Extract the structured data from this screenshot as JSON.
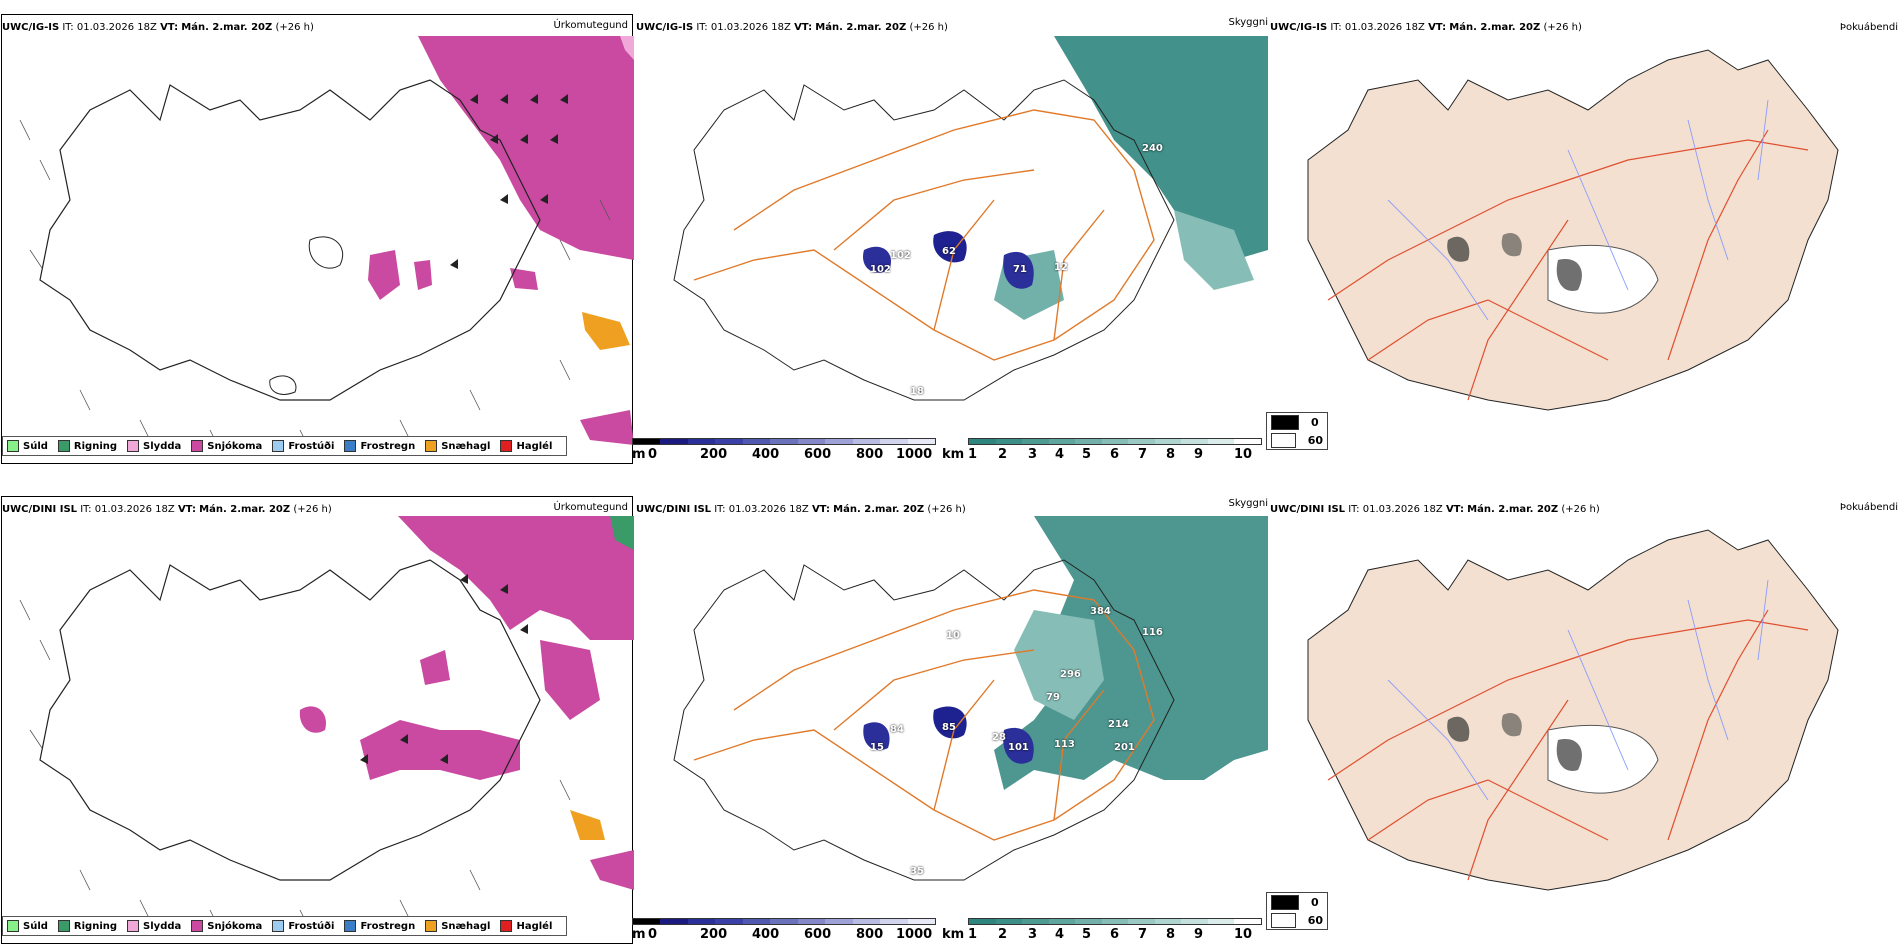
{
  "colors": {
    "snow": "#c94aa0",
    "teal": "#2e857d",
    "navy": "#1e2190",
    "land": "#f3e0d0",
    "road": "#e07a2a",
    "river": "#8a9bff"
  },
  "rows": [
    {
      "precip": {
        "model": "UWC/IG-IS",
        "it_label": "IT:",
        "it": "01.03.2026 18Z",
        "vt_label": "VT:",
        "vt": "Mán. 2.mar. 20Z",
        "lead": "(+26 h)",
        "title": "Úrkomutegund"
      },
      "vis": {
        "model": "UWC/IG-IS",
        "it_label": "IT:",
        "it": "01.03.2026 18Z",
        "vt_label": "VT:",
        "vt": "Mán. 2.mar. 20Z",
        "lead": "(+26 h)",
        "title": "Skyggni",
        "labels": [
          "240",
          "62",
          "102",
          "71",
          "12",
          "102",
          "18"
        ]
      },
      "fog": {
        "model": "UWC/IG-IS",
        "it_label": "IT:",
        "it": "01.03.2026 18Z",
        "vt_label": "VT:",
        "vt": "Mán. 2.mar. 20Z",
        "lead": "(+26 h)",
        "title": "Þokuábendi"
      }
    },
    {
      "precip": {
        "model": "UWC/DINI ISL",
        "it_label": "IT:",
        "it": "01.03.2026 18Z",
        "vt_label": "VT:",
        "vt": "Mán. 2.mar. 20Z",
        "lead": "(+26 h)",
        "title": "Úrkomutegund"
      },
      "vis": {
        "model": "UWC/DINI ISL",
        "it_label": "IT:",
        "it": "01.03.2026 18Z",
        "vt_label": "VT:",
        "vt": "Mán. 2.mar. 20Z",
        "lead": "(+26 h)",
        "title": "Skyggni",
        "labels": [
          "384",
          "116",
          "10",
          "296",
          "79",
          "85",
          "84",
          "101",
          "113",
          "214",
          "201",
          "28",
          "15",
          "35"
        ]
      },
      "fog": {
        "model": "UWC/DINI ISL",
        "it_label": "IT:",
        "it": "01.03.2026 18Z",
        "vt_label": "VT:",
        "vt": "Mán. 2.mar. 20Z",
        "lead": "(+26 h)",
        "title": "Þokuábendi"
      }
    }
  ],
  "precip_legend": [
    {
      "label": "Súld",
      "color": "#88ee88"
    },
    {
      "label": "Rigning",
      "color": "#3a9a68"
    },
    {
      "label": "Slydda",
      "color": "#f0a8d8"
    },
    {
      "label": "Snjókoma",
      "color": "#c94aa0"
    },
    {
      "label": "Frostúði",
      "color": "#9ecbf0"
    },
    {
      "label": "Frostregn",
      "color": "#3a7ec8"
    },
    {
      "label": "Snæhagl",
      "color": "#f0a020"
    },
    {
      "label": "Haglél",
      "color": "#e02020"
    }
  ],
  "m_scale": {
    "unit": "m",
    "ticks": [
      "0",
      "200",
      "400",
      "600",
      "800",
      "1000"
    ],
    "colors": [
      "#000000",
      "#1a1a80",
      "#2b2f9a",
      "#3a40a8",
      "#5058b0",
      "#6a72bc",
      "#8488c8",
      "#9ea2d6",
      "#b8bce2",
      "#d2d4ee",
      "#e8e9f6"
    ]
  },
  "km_scale": {
    "unit": "km",
    "ticks": [
      "1",
      "2",
      "3",
      "4",
      "5",
      "6",
      "7",
      "8",
      "9",
      "10"
    ],
    "colors": [
      "#2e857d",
      "#3c8f87",
      "#4d9a92",
      "#5fa59d",
      "#72b1aa",
      "#86beb7",
      "#9ac9c3",
      "#afd5d0",
      "#c4e1dd",
      "#daedea",
      "#ffffff"
    ]
  },
  "cloud_legend": {
    "items": [
      {
        "label": "0",
        "color": "#000000"
      },
      {
        "label": "60",
        "color": "#ffffff"
      }
    ]
  }
}
